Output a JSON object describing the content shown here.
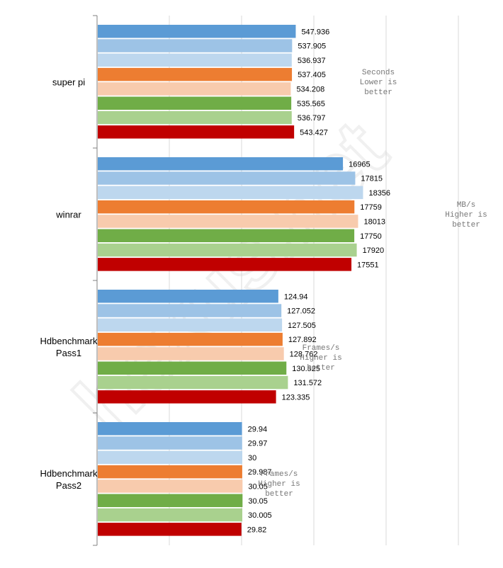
{
  "watermark_text": "hexus.net",
  "chart_data": {
    "type": "bar",
    "orientation": "horizontal",
    "title": "",
    "xlabel": "",
    "ylabel": "",
    "grid": true,
    "series_colors": [
      "#5b9bd5",
      "#9dc3e6",
      "#bdd7ee",
      "#ed7d31",
      "#f8cbad",
      "#70ad47",
      "#a9d18e",
      "#c00000"
    ],
    "groups": [
      {
        "category": [
          "super pi"
        ],
        "note": [
          "Seconds",
          "Lower is",
          "better"
        ],
        "xlim": [
          0,
          1000
        ],
        "values": [
          547.936,
          537.905,
          536.937,
          537.405,
          534.208,
          535.565,
          536.797,
          543.427
        ],
        "labels": [
          "547.936",
          "537.905",
          "536.937",
          "537.405",
          "534.208",
          "535.565",
          "536.797",
          "543.427"
        ]
      },
      {
        "category": [
          "winrar"
        ],
        "note": [
          "MB/s",
          "Higher is",
          "better"
        ],
        "xlim": [
          0,
          25000
        ],
        "values": [
          16965,
          17815,
          18356,
          17759,
          18013,
          17750,
          17920,
          17551
        ],
        "labels": [
          "16965",
          "17815",
          "18356",
          "17759",
          "18013",
          "17750",
          "17920",
          "17551"
        ]
      },
      {
        "category": [
          "Hdbenchmark",
          "Pass1"
        ],
        "note": [
          "Frames/s",
          "Higher is",
          "better"
        ],
        "xlim": [
          0,
          250
        ],
        "values": [
          124.94,
          127.052,
          127.505,
          127.892,
          128.762,
          130.525,
          131.572,
          123.335
        ],
        "labels": [
          "124.94",
          "127.052",
          "127.505",
          "127.892",
          "128.762",
          "130.525",
          "131.572",
          "123.335"
        ]
      },
      {
        "category": [
          "Hdbenchmark",
          "Pass2"
        ],
        "note": [
          "Frames/s",
          "Higher  is",
          "better"
        ],
        "xlim": [
          0,
          75
        ],
        "values": [
          29.94,
          29.97,
          30,
          29.987,
          30.05,
          30.05,
          30.005,
          29.82
        ],
        "labels": [
          "29.94",
          "29.97",
          "30",
          "29.987",
          "30.05",
          "30.05",
          "30.005",
          "29.82"
        ]
      }
    ]
  }
}
